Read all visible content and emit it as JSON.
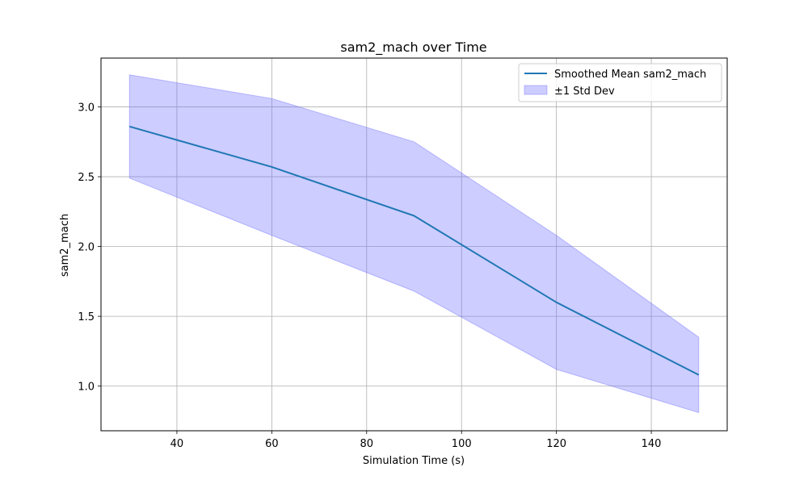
{
  "chart_data": {
    "type": "line",
    "title": "sam2_mach over Time",
    "xlabel": "Simulation Time (s)",
    "ylabel": "sam2_mach",
    "xlim": [
      24,
      156
    ],
    "ylim": [
      0.68,
      3.35
    ],
    "x_ticks": [
      40,
      60,
      80,
      100,
      120,
      140
    ],
    "y_ticks": [
      1.0,
      1.5,
      2.0,
      2.5,
      3.0
    ],
    "grid": true,
    "legend_placement": "top-right",
    "x": [
      30,
      60,
      90,
      120,
      150
    ],
    "series": [
      {
        "name": "Smoothed Mean sam2_mach",
        "kind": "line",
        "color": "#1f77b4",
        "values": [
          2.86,
          2.57,
          2.22,
          1.6,
          1.08
        ]
      },
      {
        "name": "±1 Std Dev",
        "kind": "band",
        "color": "#6666ff",
        "lower": [
          2.49,
          2.08,
          1.68,
          1.12,
          0.81
        ],
        "upper": [
          3.23,
          3.06,
          2.75,
          2.08,
          1.35
        ]
      }
    ]
  }
}
